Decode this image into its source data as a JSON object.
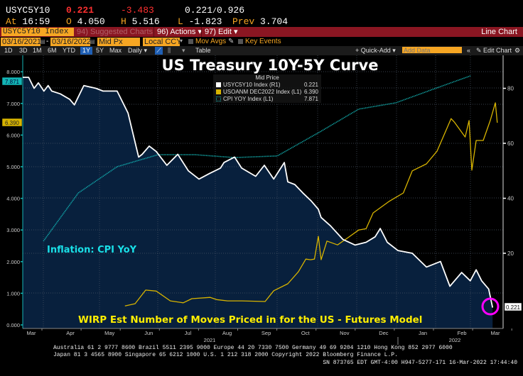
{
  "quote": {
    "ticker": "USYC5Y10",
    "last": "0.221",
    "change": "-3.483",
    "bid_ask": "0.221",
    "bid_ask_sep": "/",
    "ask": "0.926",
    "at_label": "At",
    "time": "16:59",
    "open_label": "O",
    "open": "4.050",
    "high_label": "H",
    "high": "5.516",
    "low_label": "L",
    "low": "-1.823",
    "prev_label": "Prev",
    "prev": "3.704"
  },
  "toolbar": {
    "security": "USYC5Y10 Index",
    "suggested": "94) Suggested Charts",
    "actions": "96) Actions ▾",
    "edit": "97) Edit ▾",
    "chart_type": "Line Chart"
  },
  "settings": {
    "start_date": "03/16/2021",
    "dash": "-",
    "end_date": "03/16/2022",
    "price_field": "Mid Px",
    "currency": "Local CCY",
    "mov_avgs": "Mov Avgs",
    "key_events": "Key Events"
  },
  "range_bar": {
    "ranges": [
      "1D",
      "3D",
      "1M",
      "6M",
      "YTD",
      "1Y",
      "5Y",
      "Max"
    ],
    "selected": "1Y",
    "frequency": "Daily ▾",
    "table": "Table",
    "quick_add": "+ Quick-Add ▾",
    "add_data_placeholder": "Add Data",
    "collapse": "«",
    "edit_chart": "✎ Edit Chart",
    "gear": "⚙"
  },
  "colors": {
    "white_series": "#ffffff",
    "yellow_series": "#d8b400",
    "cpi_series": "#13b5b5",
    "plot_fill": "#08203d",
    "highlight": "#ff00ff"
  },
  "chart_data": {
    "type": "line",
    "title": "US Treasury 10Y-5Y Curve",
    "legend_header": "Mid Price",
    "legend_position": "top-center",
    "annotations": [
      "Inflation: CPI YoY",
      "WIRP Est Number of Moves Priced in for the US - Futures Model"
    ],
    "x_unit": "months since 03/16/2021",
    "x_ticks": [
      "Mar",
      "Apr",
      "May",
      "Jun",
      "Jul",
      "Aug",
      "Sep",
      "Oct",
      "Nov",
      "Dec",
      "Jan",
      "Feb",
      "Mar"
    ],
    "x_years": [
      "2021",
      "2022"
    ],
    "left_axis": {
      "ticks": [
        "0.000",
        "1.000",
        "2.000",
        "3.000",
        "4.000",
        "5.000",
        "6.000",
        "7.000",
        "8.000"
      ],
      "range": [
        0,
        8
      ]
    },
    "right_axis": {
      "ticks": [
        "20",
        "40",
        "60",
        "80"
      ],
      "range": [
        0,
        85
      ]
    },
    "grid": true,
    "series": [
      {
        "name": "USYC5Y10 Index",
        "axis": "R1",
        "legend_axis": "(R1)",
        "last": "0.221",
        "x": [
          0,
          0.15,
          0.29,
          0.4,
          0.54,
          0.65,
          0.74,
          0.96,
          1.2,
          1.32,
          1.56,
          1.87,
          2.05,
          2.41,
          2.69,
          2.96,
          3.05,
          3.23,
          3.41,
          3.68,
          3.96,
          4.23,
          4.5,
          4.77,
          5.05,
          5.14,
          5.41,
          5.59,
          5.95,
          6.17,
          6.41,
          6.68,
          6.77,
          6.95,
          7.15,
          7.37,
          7.55,
          7.62,
          7.86,
          8.18,
          8.49,
          8.77,
          9.0,
          9.13,
          9.31,
          9.58,
          9.95,
          10.31,
          10.67,
          10.91,
          11.21,
          11.43,
          11.58,
          11.72,
          11.9,
          12.0
        ],
        "values": [
          84,
          84,
          80,
          82,
          79,
          81,
          79,
          78,
          76,
          74,
          81,
          80,
          79,
          79,
          71,
          55,
          56,
          59,
          57,
          52,
          56,
          50,
          47,
          49,
          51,
          53,
          55,
          51,
          48,
          52,
          47,
          53,
          46,
          45,
          42,
          39,
          36,
          33,
          30,
          25,
          23,
          24,
          26,
          29,
          24,
          21,
          20,
          15,
          17,
          8,
          13,
          10,
          14,
          10,
          7,
          0.221
        ]
      },
      {
        "name": "USOANM DEC2022 Index",
        "axis": "L1",
        "legend_axis": "(L1)",
        "last": "6.390",
        "x": [
          2.61,
          2.87,
          3.14,
          3.41,
          3.77,
          4.1,
          4.32,
          4.79,
          4.95,
          5.23,
          5.6,
          6.19,
          6.41,
          6.77,
          7.04,
          7.23,
          7.35,
          7.45,
          7.55,
          7.62,
          7.77,
          8.04,
          8.31,
          8.58,
          8.77,
          8.95,
          9.35,
          9.72,
          9.95,
          10.31,
          10.58,
          10.94,
          11.03,
          11.3,
          11.4,
          11.47,
          11.58,
          11.76,
          11.94,
          12.07,
          12.12
        ],
        "values": [
          0.6,
          0.67,
          1.1,
          1.07,
          0.76,
          0.7,
          0.83,
          0.87,
          0.8,
          0.76,
          0.76,
          0.74,
          1.08,
          1.3,
          1.68,
          2.08,
          2.06,
          2.08,
          2.8,
          2.06,
          2.65,
          2.53,
          2.76,
          3.0,
          3.04,
          3.54,
          3.9,
          4.17,
          4.87,
          5.09,
          5.49,
          6.52,
          6.4,
          5.94,
          6.46,
          4.89,
          5.83,
          5.83,
          6.46,
          7.02,
          6.39
        ]
      },
      {
        "name": "CPI YOY Index",
        "axis": "L1",
        "legend_axis": "(L1)",
        "last": "7.871",
        "x": [
          0.53,
          1.42,
          2.41,
          3.45,
          4.41,
          5.41,
          6.5,
          7.59,
          8.58,
          9.53,
          10.53,
          11.43
        ],
        "values": [
          2.65,
          4.17,
          5.0,
          5.38,
          5.38,
          5.29,
          5.34,
          6.1,
          6.82,
          7.02,
          7.47,
          7.87
        ]
      }
    ]
  },
  "footer": {
    "line1": "Australia 61 2 9777 8600 Brazil 5511 2395 9000 Europe 44 20 7330 7500 Germany 49 69 9204 1210 Hong Kong 852 2977 6000",
    "line2": "Japan 81 3 4565 8900      Singapore 65 6212 1000      U.S. 1 212 318 2000       Copyright 2022 Bloomberg Finance L.P.",
    "line3": "SN 873765 EDT  GMT-4:00 H947-5277-171 16-Mar-2022 17:44:40"
  }
}
